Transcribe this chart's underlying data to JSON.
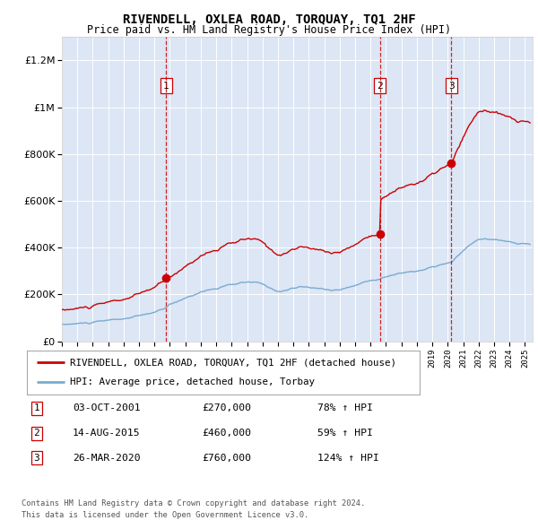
{
  "title": "RIVENDELL, OXLEA ROAD, TORQUAY, TQ1 2HF",
  "subtitle": "Price paid vs. HM Land Registry's House Price Index (HPI)",
  "transactions": [
    {
      "date": 2001.75,
      "price": 270000,
      "label": "1"
    },
    {
      "date": 2015.62,
      "price": 460000,
      "label": "2"
    },
    {
      "date": 2020.23,
      "price": 760000,
      "label": "3"
    }
  ],
  "transaction_details": [
    {
      "num": "1",
      "date": "03-OCT-2001",
      "price": "£270,000",
      "hpi": "78% ↑ HPI"
    },
    {
      "num": "2",
      "date": "14-AUG-2015",
      "price": "£460,000",
      "hpi": "59% ↑ HPI"
    },
    {
      "num": "3",
      "date": "26-MAR-2020",
      "price": "£760,000",
      "hpi": "124% ↑ HPI"
    }
  ],
  "legend_line1": "RIVENDELL, OXLEA ROAD, TORQUAY, TQ1 2HF (detached house)",
  "legend_line2": "HPI: Average price, detached house, Torbay",
  "footer1": "Contains HM Land Registry data © Crown copyright and database right 2024.",
  "footer2": "This data is licensed under the Open Government Licence v3.0.",
  "ylim": [
    0,
    1300000
  ],
  "xlim_start": 1995.0,
  "xlim_end": 2025.5,
  "red_color": "#cc0000",
  "blue_color": "#7aaacf",
  "plot_bg": "#dce6f5"
}
